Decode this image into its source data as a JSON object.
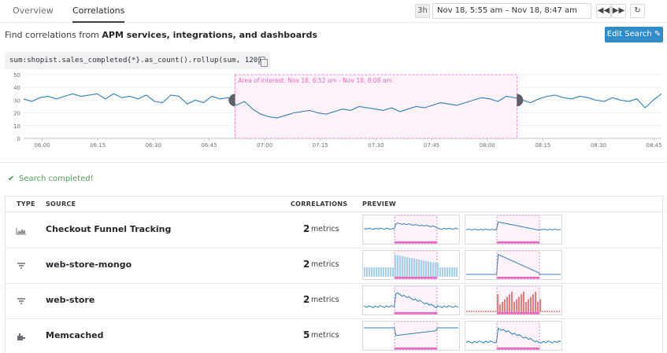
{
  "tabs": {
    "overview": "Overview",
    "correlations": "Correlations"
  },
  "timerange": {
    "badge": "3h",
    "range": "Nov 18, 5:55 am – Nov 18, 8:47 am"
  },
  "subtitle": {
    "prefix": "Find correlations from ",
    "bold": "APM services, integrations, and dashboards"
  },
  "edit_button": "Edit Search ✎",
  "query": "sum:shopist.sales_completed{*}.as_count().rollup(sum, 120)",
  "area_label": "Area of interest: Nov 18, 6:52 am - Nov 18, 8:08 am",
  "status": "Search completed!",
  "table": {
    "headers": {
      "type": "TYPE",
      "source": "SOURCE",
      "correlations": "CORRELATIONS",
      "preview": "PREVIEW"
    },
    "rows": [
      {
        "type_icon": "dashboard-icon",
        "source": "Checkout Funnel Tracking",
        "count": "2",
        "unit": "metrics"
      },
      {
        "type_icon": "service-icon",
        "source": "web-store-mongo",
        "count": "2",
        "unit": "metrics"
      },
      {
        "type_icon": "service-icon",
        "source": "web-store",
        "count": "2",
        "unit": "metrics"
      },
      {
        "type_icon": "integration-icon",
        "source": "Memcached",
        "count": "5",
        "unit": "metrics"
      }
    ]
  },
  "colors": {
    "line": "#2f7fb5",
    "highlight": "#e968c2",
    "accent": "#2f8cc9",
    "success": "#3e9c4a"
  },
  "chart_data": {
    "type": "line",
    "title": "",
    "xlabel": "",
    "ylabel": "",
    "ylim": [
      0,
      50
    ],
    "yticks": [
      0,
      10,
      20,
      30,
      40,
      50
    ],
    "xticks": [
      "06:00",
      "06:15",
      "06:30",
      "06:45",
      "07:00",
      "07:15",
      "07:30",
      "07:45",
      "08:00",
      "08:15",
      "08:30",
      "08:45"
    ],
    "xstart": "05:55",
    "xend": "08:47",
    "area_of_interest": [
      "06:52",
      "08:08"
    ],
    "series": [
      {
        "values": [
          31,
          29,
          32,
          33,
          31,
          33,
          35,
          33,
          34,
          35,
          31,
          35,
          32,
          33,
          31,
          34,
          29,
          28,
          34,
          33,
          27,
          30,
          28,
          33,
          31,
          32,
          26,
          29,
          23,
          19,
          17,
          16,
          18,
          20,
          21,
          22,
          20,
          19,
          21,
          23,
          22,
          25,
          24,
          23,
          22,
          24,
          21,
          23,
          25,
          24,
          26,
          28,
          27,
          26,
          28,
          30,
          32,
          31,
          29,
          33,
          32,
          30,
          28,
          31,
          33,
          34,
          32,
          31,
          33,
          32,
          30,
          29,
          32,
          30,
          29,
          31,
          24,
          30,
          35
        ]
      }
    ]
  }
}
